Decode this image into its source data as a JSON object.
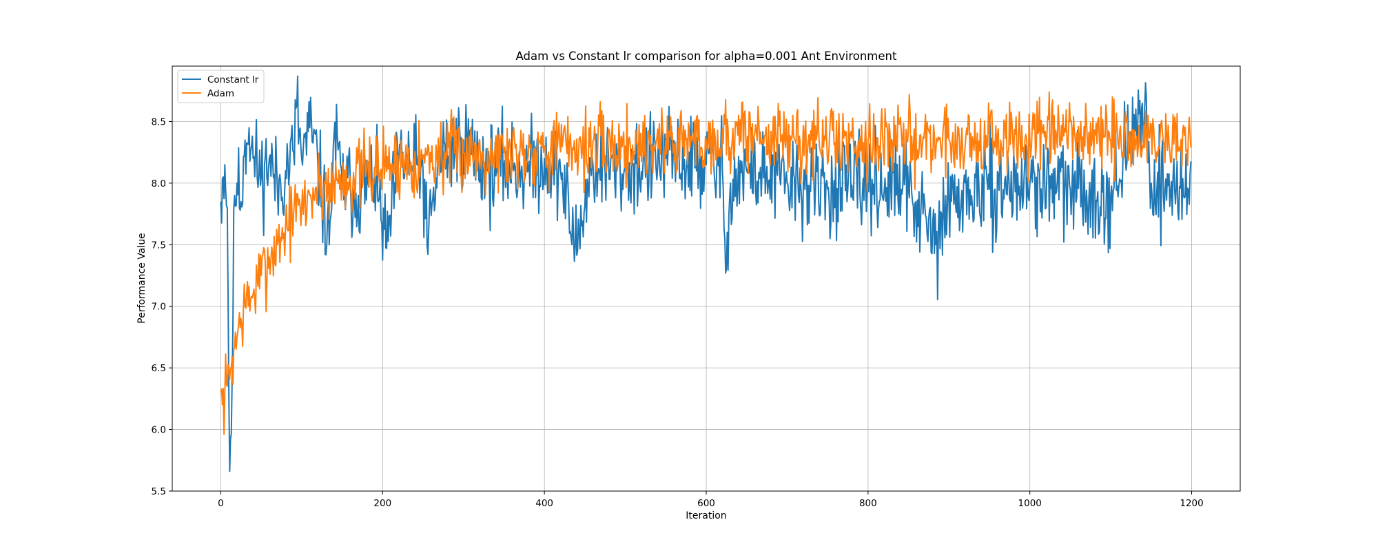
{
  "chart_data": {
    "type": "line",
    "title": "Adam vs Constant lr comparison for alpha=0.001 Ant Environment",
    "xlabel": "Iteration",
    "ylabel": "Performance Value",
    "xlim": [
      -60,
      1260
    ],
    "ylim": [
      5.5,
      8.95
    ],
    "xticks": [
      0,
      200,
      400,
      600,
      800,
      1000,
      1200
    ],
    "yticks": [
      5.5,
      6.0,
      6.5,
      7.0,
      7.5,
      8.0,
      8.5
    ],
    "xtick_labels": [
      "0",
      "200",
      "400",
      "600",
      "800",
      "1000",
      "1200"
    ],
    "ytick_labels": [
      "5.5",
      "6.0",
      "6.5",
      "7.0",
      "7.5",
      "8.0",
      "8.5"
    ],
    "grid": true,
    "legend": "upper-left",
    "series": [
      {
        "name": "Constant lr",
        "color": "#1f77b4",
        "anchors": [
          [
            0,
            7.85
          ],
          [
            3,
            8.05
          ],
          [
            5,
            8.15
          ],
          [
            8,
            7.8
          ],
          [
            11,
            5.66
          ],
          [
            14,
            6.4
          ],
          [
            17,
            7.9
          ],
          [
            20,
            8.0
          ],
          [
            25,
            7.85
          ],
          [
            30,
            8.35
          ],
          [
            35,
            8.45
          ],
          [
            40,
            8.2
          ],
          [
            50,
            8.05
          ],
          [
            60,
            8.2
          ],
          [
            70,
            7.95
          ],
          [
            80,
            8.1
          ],
          [
            90,
            8.25
          ],
          [
            94,
            8.63
          ],
          [
            100,
            8.2
          ],
          [
            110,
            8.45
          ],
          [
            120,
            8.15
          ],
          [
            134,
            7.5
          ],
          [
            140,
            8.4
          ],
          [
            150,
            8.0
          ],
          [
            170,
            7.9
          ],
          [
            190,
            8.05
          ],
          [
            205,
            7.47
          ],
          [
            220,
            8.2
          ],
          [
            250,
            8.1
          ],
          [
            255,
            7.49
          ],
          [
            270,
            8.2
          ],
          [
            300,
            8.35
          ],
          [
            330,
            8.1
          ],
          [
            350,
            8.15
          ],
          [
            380,
            8.1
          ],
          [
            400,
            8.2
          ],
          [
            420,
            8.1
          ],
          [
            438,
            7.48
          ],
          [
            460,
            8.15
          ],
          [
            500,
            8.1
          ],
          [
            550,
            8.2
          ],
          [
            600,
            8.15
          ],
          [
            620,
            8.1
          ],
          [
            624,
            7.27
          ],
          [
            626,
            7.6
          ],
          [
            630,
            8.0
          ],
          [
            650,
            8.1
          ],
          [
            700,
            8.0
          ],
          [
            750,
            7.95
          ],
          [
            800,
            8.0
          ],
          [
            850,
            7.95
          ],
          [
            884,
            7.5
          ],
          [
            900,
            7.85
          ],
          [
            950,
            7.95
          ],
          [
            1000,
            8.0
          ],
          [
            1050,
            7.95
          ],
          [
            1100,
            7.9
          ],
          [
            1142,
            8.62
          ],
          [
            1150,
            8.0
          ],
          [
            1200,
            7.95
          ]
        ],
        "noise": 0.19,
        "seed": 11
      },
      {
        "name": "Adam",
        "color": "#ff7f0e",
        "anchors": [
          [
            0,
            6.3
          ],
          [
            2,
            6.2
          ],
          [
            5,
            6.3
          ],
          [
            8,
            6.35
          ],
          [
            12,
            6.5
          ],
          [
            16,
            6.65
          ],
          [
            20,
            6.75
          ],
          [
            25,
            6.9
          ],
          [
            30,
            7.0
          ],
          [
            40,
            7.1
          ],
          [
            50,
            7.25
          ],
          [
            60,
            7.4
          ],
          [
            70,
            7.5
          ],
          [
            80,
            7.65
          ],
          [
            90,
            7.75
          ],
          [
            100,
            7.8
          ],
          [
            110,
            7.9
          ],
          [
            120,
            7.95
          ],
          [
            140,
            8.0
          ],
          [
            160,
            8.05
          ],
          [
            180,
            8.1
          ],
          [
            200,
            8.15
          ],
          [
            250,
            8.2
          ],
          [
            300,
            8.25
          ],
          [
            350,
            8.25
          ],
          [
            400,
            8.3
          ],
          [
            450,
            8.3
          ],
          [
            500,
            8.3
          ],
          [
            550,
            8.35
          ],
          [
            600,
            8.35
          ],
          [
            660,
            8.4
          ],
          [
            700,
            8.35
          ],
          [
            800,
            8.35
          ],
          [
            900,
            8.35
          ],
          [
            1000,
            8.35
          ],
          [
            1062,
            8.4
          ],
          [
            1100,
            8.35
          ],
          [
            1200,
            8.35
          ]
        ],
        "noise": 0.15,
        "seed": 7
      }
    ]
  }
}
